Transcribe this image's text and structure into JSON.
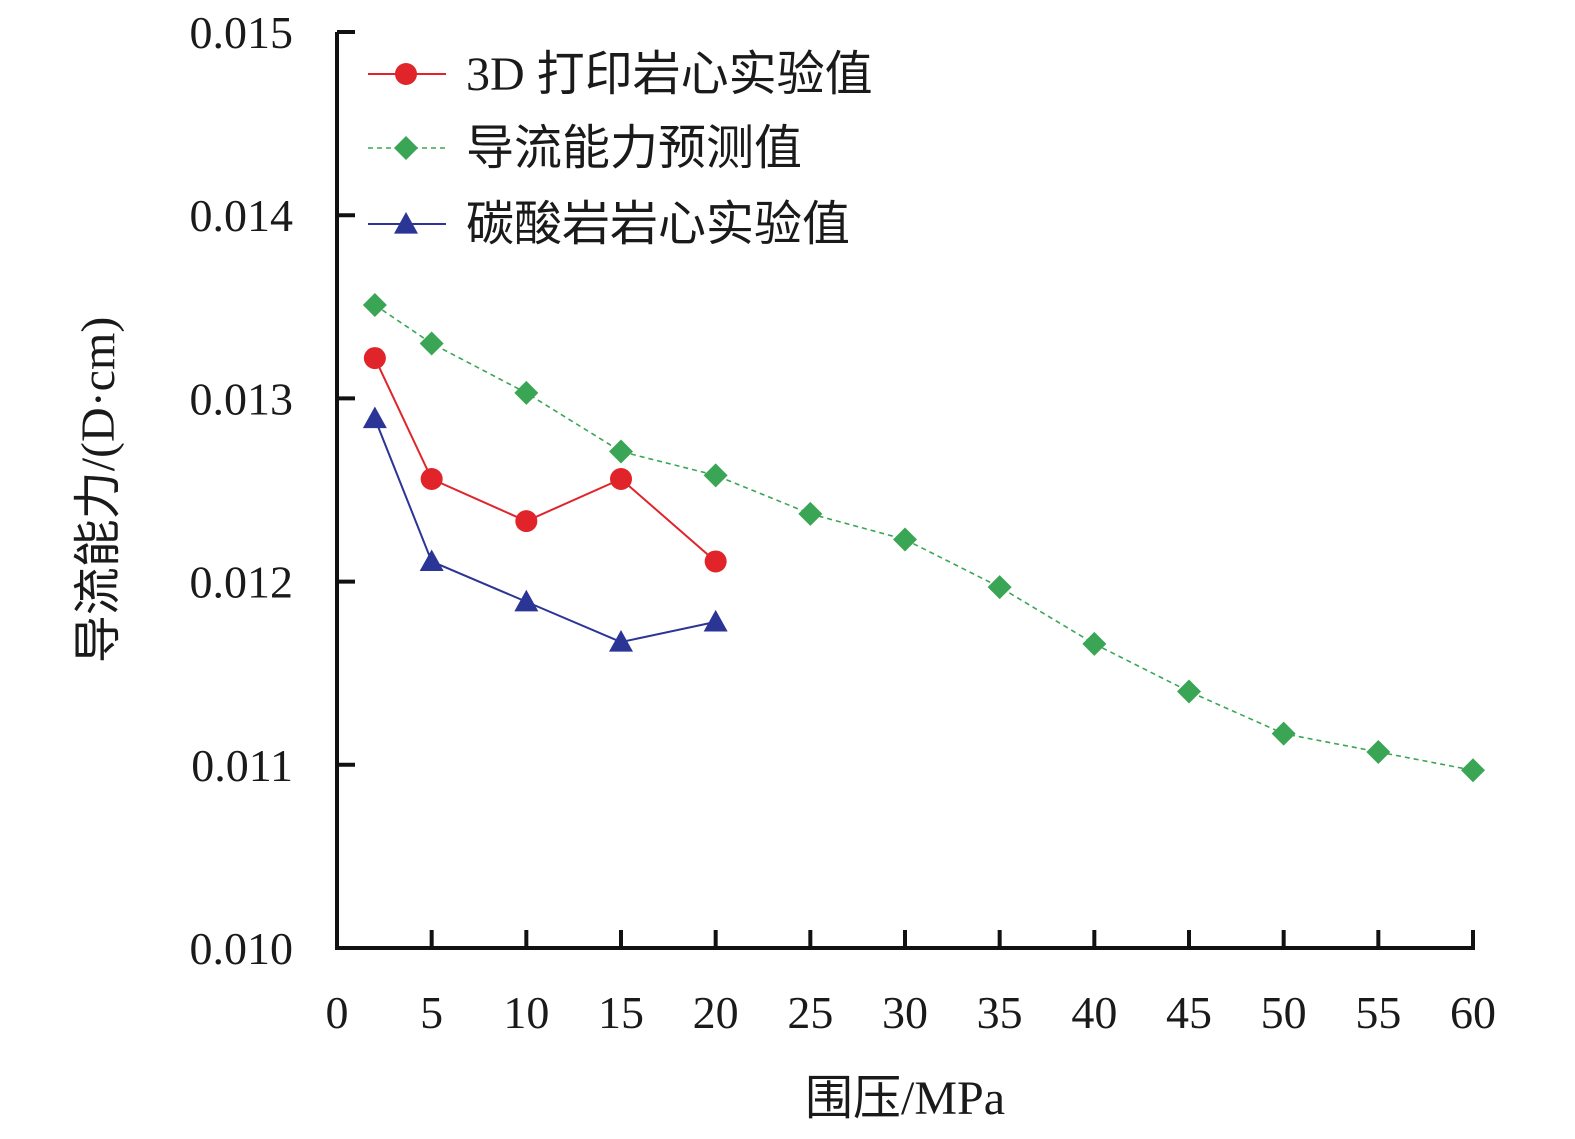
{
  "chart_data": {
    "type": "line",
    "title": "",
    "xlabel": "围压/MPa",
    "ylabel": "导流能力/(D·cm)",
    "xlim": [
      0,
      60
    ],
    "ylim": [
      0.01,
      0.015
    ],
    "x_ticks": [
      "0",
      "5",
      "10",
      "15",
      "20",
      "25",
      "30",
      "35",
      "40",
      "45",
      "50",
      "55",
      "60"
    ],
    "y_ticks": [
      "0.010",
      "0.011",
      "0.012",
      "0.013",
      "0.014",
      "0.015"
    ],
    "grid": false,
    "legend_position": "top-left",
    "series": [
      {
        "name": "3D 打印岩心实验值",
        "color": "#e0242a",
        "marker": "circle",
        "line": "solid",
        "x": [
          2,
          5,
          10,
          15,
          20
        ],
        "y": [
          0.01322,
          0.01256,
          0.01233,
          0.01256,
          0.01211
        ]
      },
      {
        "name": "导流能力预测值",
        "color": "#3aa655",
        "marker": "diamond",
        "line": "dashed",
        "x": [
          2,
          5,
          10,
          15,
          20,
          25,
          30,
          35,
          40,
          45,
          50,
          55,
          60
        ],
        "y": [
          0.01351,
          0.0133,
          0.01303,
          0.01271,
          0.01258,
          0.01237,
          0.01223,
          0.01197,
          0.01166,
          0.0114,
          0.01117,
          0.01107,
          0.01097
        ]
      },
      {
        "name": "碳酸岩岩心实验值",
        "color": "#2b3596",
        "marker": "triangle",
        "line": "solid",
        "x": [
          2,
          5,
          10,
          15,
          20
        ],
        "y": [
          0.01289,
          0.01211,
          0.01189,
          0.01167,
          0.01178
        ]
      }
    ]
  }
}
